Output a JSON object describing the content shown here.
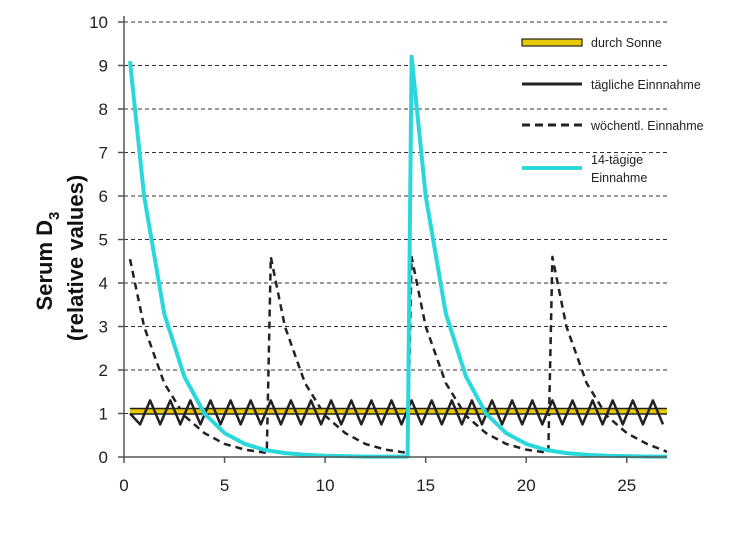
{
  "chart_data": {
    "type": "line",
    "title": "",
    "xlabel": "",
    "ylabel_line1": "Serum D",
    "ylabel_sub": "3",
    "ylabel_line2": "(relative values)",
    "xlim": [
      0,
      27
    ],
    "ylim": [
      0,
      10
    ],
    "xticks": [
      0,
      5,
      10,
      15,
      20,
      25
    ],
    "yticks": [
      0,
      1,
      2,
      3,
      4,
      5,
      6,
      7,
      8,
      9,
      10
    ],
    "grid": "horizontal dashed",
    "legend_position": "top-right",
    "series": [
      {
        "name": "durch Sonne",
        "color": "#e8c800",
        "style": "solid-outlined",
        "x": [
          0.3,
          27
        ],
        "y": [
          1.05,
          1.05
        ]
      },
      {
        "name": "tägliche Einnnahme",
        "color": "#222222",
        "style": "solid",
        "x": [
          0.3,
          0.8,
          1.3,
          1.8,
          2.3,
          2.8,
          3.3,
          3.8,
          4.3,
          4.8,
          5.3,
          5.8,
          6.3,
          6.8,
          7.3,
          7.8,
          8.3,
          8.8,
          9.3,
          9.8,
          10.3,
          10.8,
          11.3,
          11.8,
          12.3,
          12.8,
          13.3,
          13.8,
          14.3,
          14.8,
          15.3,
          15.8,
          16.3,
          16.8,
          17.3,
          17.8,
          18.3,
          18.8,
          19.3,
          19.8,
          20.3,
          20.8,
          21.3,
          21.8,
          22.3,
          22.8,
          23.3,
          23.8,
          24.3,
          24.8,
          25.3,
          25.8,
          26.3,
          26.8
        ],
        "y": [
          1.0,
          0.75,
          1.3,
          0.75,
          1.3,
          0.75,
          1.3,
          0.75,
          1.3,
          0.75,
          1.3,
          0.75,
          1.3,
          0.75,
          1.3,
          0.75,
          1.3,
          0.75,
          1.3,
          0.75,
          1.3,
          0.75,
          1.3,
          0.75,
          1.3,
          0.75,
          1.3,
          0.75,
          1.3,
          0.75,
          1.3,
          0.75,
          1.3,
          0.75,
          1.3,
          0.75,
          1.3,
          0.75,
          1.3,
          0.75,
          1.3,
          0.75,
          1.3,
          0.75,
          1.3,
          0.75,
          1.3,
          0.75,
          1.3,
          0.75,
          1.3,
          0.75,
          1.3,
          0.75
        ]
      },
      {
        "name": "wöchentl. Einnahme",
        "color": "#222222",
        "style": "dashed",
        "x": [
          0.3,
          1.0,
          2.0,
          3.0,
          4.0,
          5.0,
          6.0,
          7.0,
          7.1,
          7.3,
          8.0,
          9.0,
          10.0,
          11.0,
          12.0,
          13.0,
          14.0,
          14.1,
          14.3,
          15.0,
          16.0,
          17.0,
          18.0,
          19.0,
          20.0,
          21.0,
          21.1,
          21.3,
          22.0,
          23.0,
          24.0,
          25.0,
          26.0,
          27.0
        ],
        "y": [
          4.55,
          3.0,
          1.7,
          0.95,
          0.55,
          0.3,
          0.17,
          0.1,
          0.1,
          4.6,
          3.0,
          1.7,
          0.95,
          0.55,
          0.3,
          0.17,
          0.1,
          0.1,
          4.6,
          3.0,
          1.7,
          0.95,
          0.55,
          0.3,
          0.17,
          0.1,
          0.1,
          4.6,
          3.0,
          1.7,
          0.95,
          0.55,
          0.3,
          0.12
        ]
      },
      {
        "name": "14-tägige Einnahme",
        "color": "#2ad8dc",
        "style": "solid-thick",
        "x": [
          0.3,
          1.0,
          2.0,
          3.0,
          4.0,
          5.0,
          6.0,
          7.0,
          8.0,
          9.0,
          10.0,
          11.0,
          12.0,
          13.0,
          14.0,
          14.1,
          14.3,
          15.0,
          16.0,
          17.0,
          18.0,
          19.0,
          20.0,
          21.0,
          22.0,
          23.0,
          24.0,
          25.0,
          26.0,
          27.0
        ],
        "y": [
          9.1,
          6.0,
          3.3,
          1.85,
          1.0,
          0.55,
          0.3,
          0.16,
          0.09,
          0.05,
          0.03,
          0.02,
          0.01,
          0.01,
          0.01,
          0.01,
          9.2,
          6.0,
          3.3,
          1.85,
          1.0,
          0.55,
          0.3,
          0.16,
          0.09,
          0.05,
          0.03,
          0.02,
          0.01,
          0.01
        ]
      }
    ],
    "legend": [
      {
        "label": "durch Sonne",
        "series": 0
      },
      {
        "label": "tägliche Einnnahme",
        "series": 1
      },
      {
        "label": "wöchentl. Einnahme",
        "series": 2
      },
      {
        "label_line1": "14-tägige",
        "label_line2": "Einnahme",
        "series": 3
      }
    ]
  }
}
